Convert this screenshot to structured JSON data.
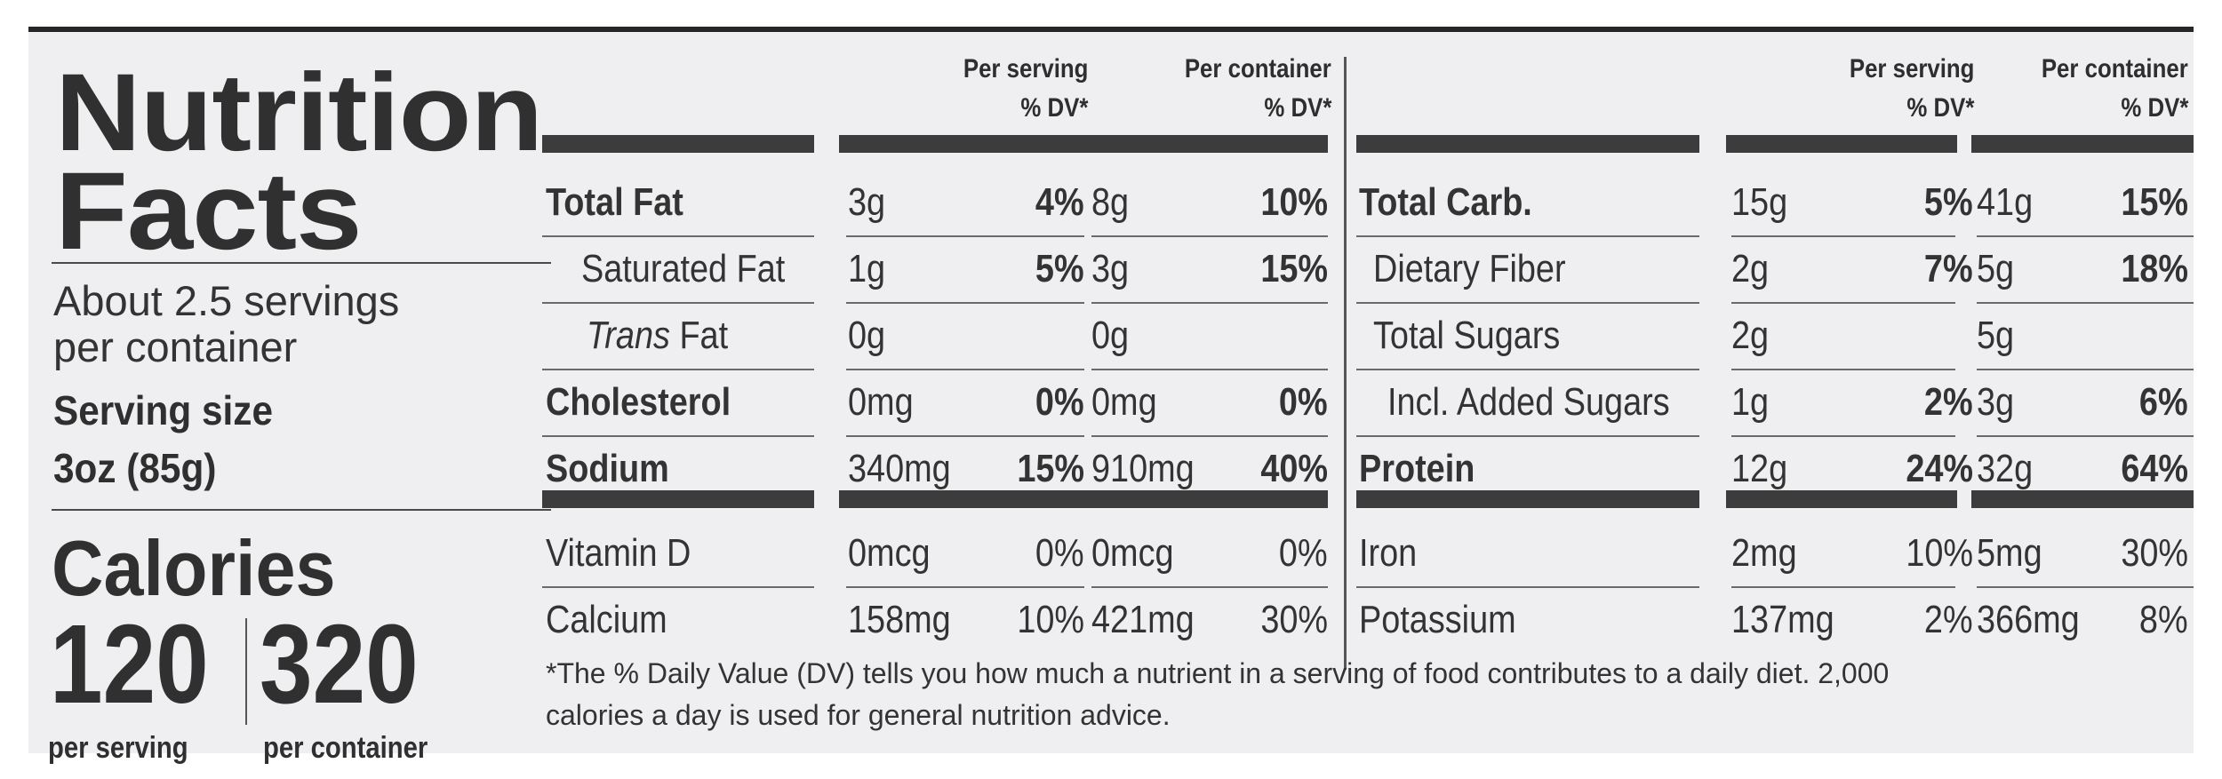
{
  "title_line1": "Nutrition",
  "title_line2": "Facts",
  "servings_line1": "About 2.5 servings",
  "servings_line2": "per container",
  "serving_size_label": "Serving size",
  "serving_size_value": "3oz (85g)",
  "calories_label": "Calories",
  "calories_per_serving": "120",
  "calories_per_container": "320",
  "per_serving_label": "per serving",
  "per_container_label": "per container",
  "col_headers": {
    "per_serving": "Per serving",
    "per_container": "Per container",
    "dv": "% DV*"
  },
  "left_rows": [
    {
      "name": "Total Fat",
      "ps_amt": "3g",
      "ps_dv": "4%",
      "pc_amt": "8g",
      "pc_dv": "10%"
    },
    {
      "name": "Saturated Fat",
      "ps_amt": "1g",
      "ps_dv": "5%",
      "pc_amt": "3g",
      "pc_dv": "15%"
    },
    {
      "name_italic": "Trans",
      "name": " Fat",
      "ps_amt": "0g",
      "ps_dv": "",
      "pc_amt": "0g",
      "pc_dv": ""
    },
    {
      "name": "Cholesterol",
      "ps_amt": "0mg",
      "ps_dv": "0%",
      "pc_amt": "0mg",
      "pc_dv": "0%"
    },
    {
      "name": "Sodium",
      "ps_amt": "340mg",
      "ps_dv": "15%",
      "pc_amt": "910mg",
      "pc_dv": "40%"
    },
    {
      "name": "Vitamin D",
      "ps_amt": "0mcg",
      "ps_dv": "0%",
      "pc_amt": "0mcg",
      "pc_dv": "0%"
    },
    {
      "name": "Calcium",
      "ps_amt": "158mg",
      "ps_dv": "10%",
      "pc_amt": "421mg",
      "pc_dv": "30%"
    }
  ],
  "right_rows": [
    {
      "name": "Total Carb.",
      "ps_amt": "15g",
      "ps_dv": "5%",
      "pc_amt": "41g",
      "pc_dv": "15%"
    },
    {
      "name": "Dietary Fiber",
      "ps_amt": "2g",
      "ps_dv": "7%",
      "pc_amt": "5g",
      "pc_dv": "18%"
    },
    {
      "name": "Total Sugars",
      "ps_amt": "2g",
      "ps_dv": "",
      "pc_amt": "5g",
      "pc_dv": ""
    },
    {
      "name": "Incl. Added Sugars",
      "ps_amt": "1g",
      "ps_dv": "2%",
      "pc_amt": "3g",
      "pc_dv": "6%"
    },
    {
      "name": "Protein",
      "ps_amt": "12g",
      "ps_dv": "24%",
      "pc_amt": "32g",
      "pc_dv": "64%"
    },
    {
      "name": "Iron",
      "ps_amt": "2mg",
      "ps_dv": "10%",
      "pc_amt": "5mg",
      "pc_dv": "30%"
    },
    {
      "name": "Potassium",
      "ps_amt": "137mg",
      "ps_dv": "2%",
      "pc_amt": "366mg",
      "pc_dv": "8%"
    }
  ],
  "footnote_line1": "*The % Daily Value (DV) tells you how much a nutrient in a serving of food contributes to a daily diet. 2,000",
  "footnote_line2": "calories a day is used for general nutrition advice."
}
